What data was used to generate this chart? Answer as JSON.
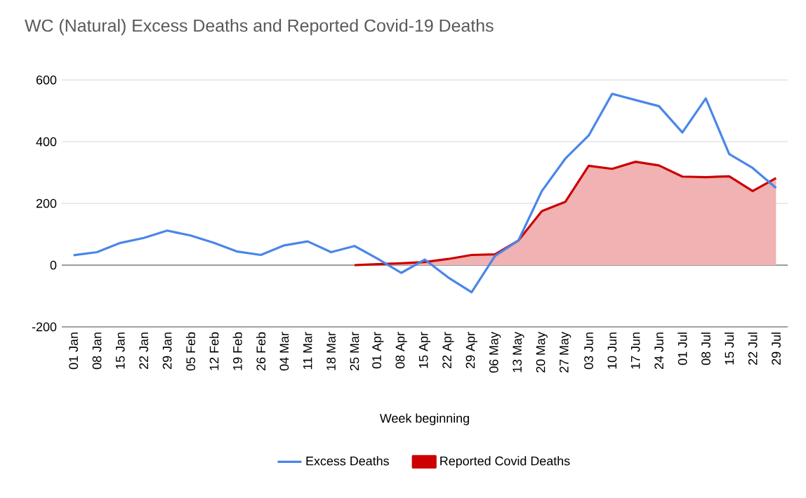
{
  "chart_data": {
    "type": "line",
    "title": "WC (Natural) Excess Deaths and Reported Covid-19 Deaths",
    "xlabel": "Week beginning",
    "categories": [
      "01 Jan",
      "08 Jan",
      "15 Jan",
      "22 Jan",
      "29 Jan",
      "05 Feb",
      "12 Feb",
      "19 Feb",
      "26 Feb",
      "04 Mar",
      "11 Mar",
      "18 Mar",
      "25 Mar",
      "01 Apr",
      "08 Apr",
      "15 Apr",
      "22 Apr",
      "29 Apr",
      "06 May",
      "13 May",
      "20 May",
      "27 May",
      "03 Jun",
      "10 Jun",
      "17 Jun",
      "24 Jun",
      "01 Jul",
      "08 Jul",
      "15 Jul",
      "22 Jul",
      "29 Jul"
    ],
    "series": [
      {
        "name": "Excess Deaths",
        "color": "#4a86e8",
        "values": [
          32,
          42,
          72,
          88,
          112,
          96,
          72,
          44,
          33,
          64,
          77,
          42,
          62,
          20,
          -25,
          18,
          -40,
          -88,
          30,
          80,
          240,
          345,
          420,
          555,
          535,
          515,
          430,
          540,
          360,
          315,
          250
        ]
      },
      {
        "name": "Reported Covid Deaths",
        "type": "area",
        "color": "#cc0000",
        "values": [
          null,
          null,
          null,
          null,
          null,
          null,
          null,
          null,
          null,
          null,
          null,
          null,
          0,
          3,
          6,
          10,
          20,
          33,
          35,
          80,
          175,
          205,
          322,
          312,
          335,
          323,
          287,
          285,
          288,
          240,
          282
        ]
      }
    ],
    "ylim": [
      -200,
      600
    ],
    "yticks": [
      -200,
      0,
      200,
      400,
      600
    ],
    "grid": "y",
    "legend": "bottom"
  }
}
